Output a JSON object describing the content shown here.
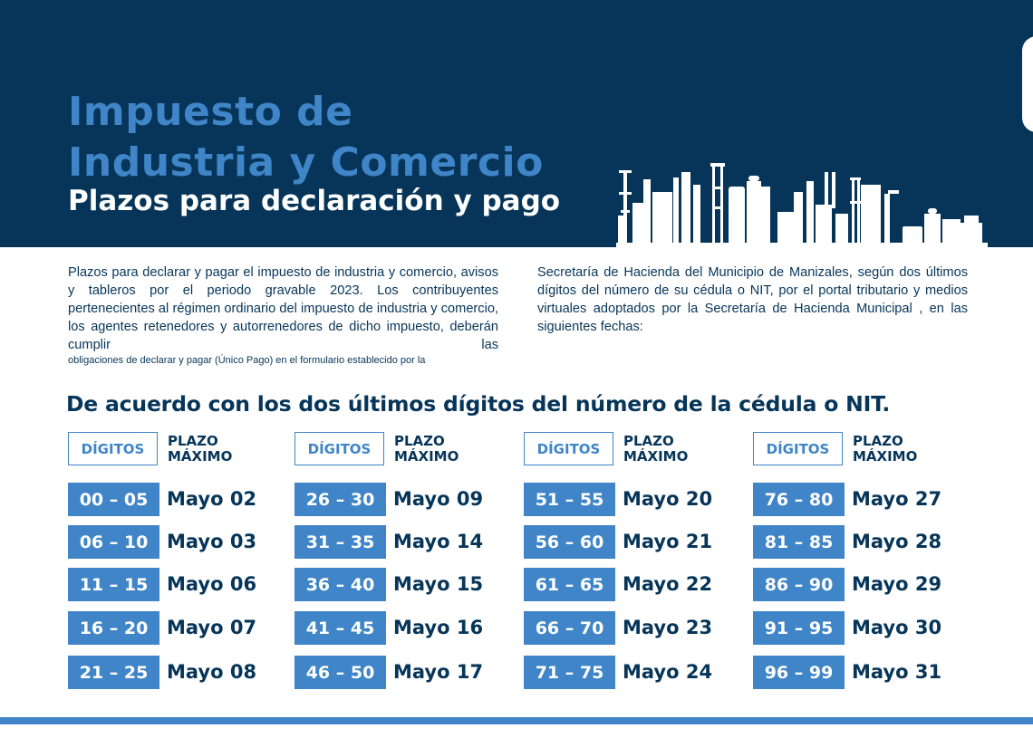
{
  "header": {
    "title_line1": "Impuesto de",
    "title_line2": "Industria y Comercio",
    "subtitle": "Plazos para declaración y pago"
  },
  "intro": {
    "left_text": "Plazos para declarar y pagar el impuesto de industria y comercio, avisos y tableros por el periodo gravable 2023. Los contribuyentes pertenecientes al régimen ordinario del impuesto de industria y comercio, los agentes retenedores y autorrenedores de dicho impuesto, deberán cumplir las",
    "left_small": "obligaciones de declarar y pagar (Único Pago) en el formulario establecido por la",
    "right_text": "Secretaría de Hacienda del Municipio de Manizales, según dos últimos dígitos del número de su cédula o NIT, por el portal tributario y medios virtuales adoptados por la  Secretaría de Hacienda Municipal  , en las siguientes fechas:"
  },
  "section_heading": "De acuerdo con los dos últimos dígitos del número de la cédula o NIT.",
  "table_headers": {
    "digits": "DÍGITOS",
    "plazo_line1": "PLAZO",
    "plazo_line2": "MÁXIMO"
  },
  "columns": [
    {
      "rows": [
        {
          "range": "00 – 05",
          "date": "Mayo 02"
        },
        {
          "range": "06 – 10",
          "date": "Mayo 03"
        },
        {
          "range": "11 – 15",
          "date": "Mayo 06"
        },
        {
          "range": "16 – 20",
          "date": "Mayo 07"
        },
        {
          "range": "21 – 25",
          "date": "Mayo 08"
        }
      ]
    },
    {
      "rows": [
        {
          "range": "26 – 30",
          "date": "Mayo 09"
        },
        {
          "range": "31 – 35",
          "date": "Mayo 14"
        },
        {
          "range": "36 – 40",
          "date": "Mayo 15"
        },
        {
          "range": "41 – 45",
          "date": "Mayo 16"
        },
        {
          "range": "46 – 50",
          "date": "Mayo 17"
        }
      ]
    },
    {
      "rows": [
        {
          "range": "51 – 55",
          "date": "Mayo 20"
        },
        {
          "range": "56 – 60",
          "date": "Mayo 21"
        },
        {
          "range": "61 – 65",
          "date": "Mayo 22"
        },
        {
          "range": "66 – 70",
          "date": "Mayo 23"
        },
        {
          "range": "71 – 75",
          "date": "Mayo 24"
        }
      ]
    },
    {
      "rows": [
        {
          "range": "76 – 80",
          "date": "Mayo 27"
        },
        {
          "range": "81 – 85",
          "date": "Mayo 28"
        },
        {
          "range": "86 – 90",
          "date": "Mayo 29"
        },
        {
          "range": "91 – 95",
          "date": "Mayo 30"
        },
        {
          "range": "96 – 99",
          "date": "Mayo 31"
        }
      ]
    }
  ],
  "colors": {
    "navy": "#063559",
    "accent_blue": "#3f85c7",
    "background": "#ffffff"
  },
  "icons": {
    "skyline": "industrial-skyline-icon"
  }
}
